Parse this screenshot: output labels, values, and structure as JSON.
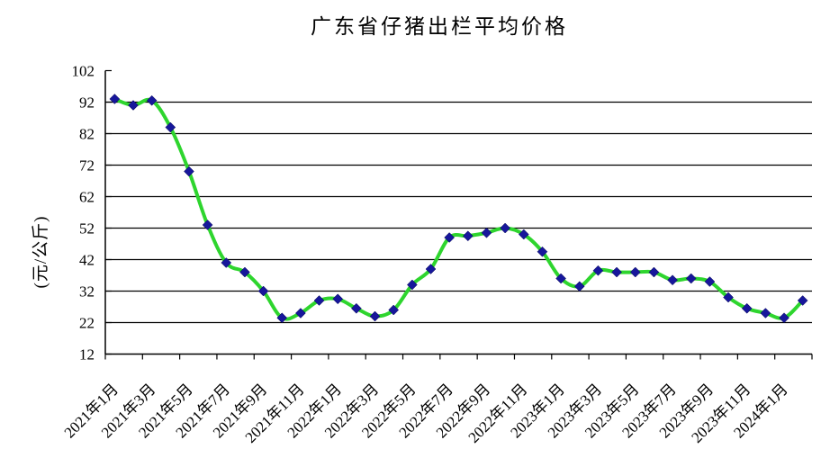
{
  "chart_data": {
    "type": "line",
    "title": "广东省仔猪出栏平均价格",
    "ylabel": "(元/公斤)",
    "x": [
      "2021年1月",
      "2021年2月",
      "2021年3月",
      "2021年4月",
      "2021年5月",
      "2021年6月",
      "2021年7月",
      "2021年8月",
      "2021年9月",
      "2021年10月",
      "2021年11月",
      "2021年12月",
      "2022年1月",
      "2022年2月",
      "2022年3月",
      "2022年4月",
      "2022年5月",
      "2022年6月",
      "2022年7月",
      "2022年8月",
      "2022年9月",
      "2022年10月",
      "2022年11月",
      "2022年12月",
      "2023年1月",
      "2023年2月",
      "2023年3月",
      "2023年4月",
      "2023年5月",
      "2023年6月",
      "2023年7月",
      "2023年8月",
      "2023年9月",
      "2023年10月",
      "2023年11月",
      "2023年12月",
      "2024年1月",
      "2024年2月"
    ],
    "values": [
      93,
      91,
      92.5,
      84,
      70,
      53,
      41,
      38,
      32,
      23.5,
      25,
      29,
      29.5,
      26.5,
      24,
      26,
      34,
      39,
      49,
      49.5,
      50.5,
      52,
      50,
      44.5,
      36,
      33.5,
      38.5,
      38,
      38,
      38,
      35.5,
      36,
      35,
      30,
      26.5,
      25,
      23.5,
      29
    ],
    "ylim": [
      12,
      102
    ],
    "yticks": [
      12,
      22,
      32,
      42,
      52,
      62,
      72,
      82,
      92,
      102
    ],
    "xtick_labels": [
      "2021年1月",
      "2021年3月",
      "2021年5月",
      "2021年7月",
      "2021年9月",
      "2021年11月",
      "2022年1月",
      "2022年3月",
      "2022年5月",
      "2022年7月",
      "2022年9月",
      "2022年11月",
      "2023年1月",
      "2023年3月",
      "2023年5月",
      "2023年7月",
      "2023年9月",
      "2023年11月",
      "2024年1月"
    ],
    "xtick_every": 2,
    "grid": "horizontal",
    "legend": "none",
    "smoothed": true,
    "line_color": "#2ED52E",
    "marker": "diamond",
    "marker_color": "#17179B",
    "axis_color": "#000000"
  }
}
